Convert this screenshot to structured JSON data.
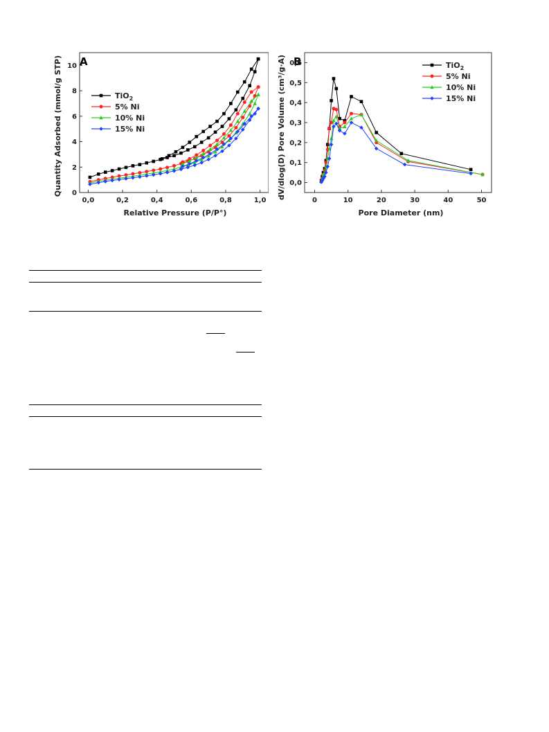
{
  "figure": {
    "panels": [
      {
        "letter": "A",
        "x_ticks": [
          "0,0",
          "0,2",
          "0,4",
          "0,6",
          "0,8",
          "1,0"
        ],
        "y_ticks": [
          "0",
          "2",
          "4",
          "6",
          "8",
          "10"
        ],
        "xlabel": "Relative Pressure (P/P°)",
        "ylabel": "Quantity Adsorbed (mmol/g STP)",
        "legend": [
          "TiO",
          "5% Ni",
          "10% Ni",
          "15% Ni"
        ]
      },
      {
        "letter": "B",
        "x_ticks": [
          "0",
          "10",
          "20",
          "30",
          "40",
          "50"
        ],
        "y_ticks": [
          "0,0",
          "0,1",
          "0,2",
          "0,3",
          "0,4",
          "0,5",
          "0,6"
        ],
        "xlabel": "Pore Diameter (nm)",
        "ylabel": "dV/dlog(D) Pore Volume (cm³/g·Å)",
        "legend": [
          "TiO",
          "5% Ni",
          "10% Ni",
          "15% Ni"
        ]
      }
    ],
    "legend_subscript": "2"
  },
  "chart_data": [
    {
      "type": "line",
      "title": "",
      "xlabel": "Relative Pressure (P/P°)",
      "ylabel": "Quantity Adsorbed (mmol/g STP)",
      "xlim": [
        -0.05,
        1.05
      ],
      "ylim": [
        0,
        11
      ],
      "grid": false,
      "legend_position": "left-middle",
      "series": [
        {
          "name": "TiO2",
          "color": "#000000",
          "adsorption": {
            "x": [
              0.01,
              0.06,
              0.1,
              0.14,
              0.18,
              0.22,
              0.26,
              0.3,
              0.34,
              0.38,
              0.42,
              0.46,
              0.5,
              0.54,
              0.58,
              0.62,
              0.66,
              0.7,
              0.74,
              0.78,
              0.82,
              0.86,
              0.9,
              0.94,
              0.97,
              0.99
            ],
            "y": [
              1.2,
              1.45,
              1.6,
              1.72,
              1.85,
              1.97,
              2.1,
              2.2,
              2.33,
              2.45,
              2.6,
              2.75,
              2.9,
              3.1,
              3.35,
              3.6,
              3.95,
              4.3,
              4.75,
              5.2,
              5.8,
              6.5,
              7.4,
              8.4,
              9.5,
              10.5
            ]
          },
          "desorption": {
            "x": [
              0.99,
              0.95,
              0.91,
              0.87,
              0.83,
              0.79,
              0.75,
              0.71,
              0.67,
              0.63,
              0.59,
              0.55,
              0.51,
              0.47,
              0.43
            ],
            "y": [
              10.5,
              9.7,
              8.7,
              7.9,
              7.0,
              6.2,
              5.6,
              5.2,
              4.8,
              4.4,
              3.95,
              3.55,
              3.2,
              2.9,
              2.65
            ]
          }
        },
        {
          "name": "5% Ni",
          "color": "#ff2020",
          "adsorption": {
            "x": [
              0.01,
              0.06,
              0.1,
              0.14,
              0.18,
              0.22,
              0.26,
              0.3,
              0.34,
              0.38,
              0.42,
              0.46,
              0.5,
              0.54,
              0.58,
              0.62,
              0.66,
              0.7,
              0.74,
              0.78,
              0.82,
              0.86,
              0.9,
              0.94,
              0.97,
              0.99
            ],
            "y": [
              0.85,
              1.0,
              1.1,
              1.2,
              1.3,
              1.38,
              1.47,
              1.55,
              1.65,
              1.75,
              1.85,
              1.97,
              2.1,
              2.27,
              2.45,
              2.67,
              2.9,
              3.2,
              3.55,
              3.95,
              4.45,
              5.1,
              5.9,
              6.8,
              7.6,
              8.3
            ]
          },
          "desorption": {
            "x": [
              0.99,
              0.95,
              0.91,
              0.87,
              0.83,
              0.79,
              0.75,
              0.71,
              0.67,
              0.63,
              0.59,
              0.55
            ],
            "y": [
              8.3,
              7.9,
              7.1,
              6.2,
              5.3,
              4.6,
              4.1,
              3.7,
              3.3,
              2.95,
              2.65,
              2.4
            ]
          }
        },
        {
          "name": "10% Ni",
          "color": "#22cc22",
          "adsorption": {
            "x": [
              0.01,
              0.06,
              0.1,
              0.14,
              0.18,
              0.22,
              0.26,
              0.3,
              0.34,
              0.38,
              0.42,
              0.46,
              0.5,
              0.54,
              0.58,
              0.62,
              0.66,
              0.7,
              0.74,
              0.78,
              0.82,
              0.86,
              0.9,
              0.94,
              0.97,
              0.99
            ],
            "y": [
              0.75,
              0.88,
              0.97,
              1.05,
              1.13,
              1.2,
              1.28,
              1.36,
              1.45,
              1.54,
              1.63,
              1.73,
              1.85,
              2.0,
              2.17,
              2.37,
              2.6,
              2.88,
              3.2,
              3.6,
              4.1,
              4.7,
              5.4,
              6.2,
              7.0,
              7.7
            ]
          },
          "desorption": {
            "x": [
              0.99,
              0.95,
              0.91,
              0.87,
              0.83,
              0.79,
              0.75,
              0.71,
              0.67,
              0.63,
              0.59,
              0.55
            ],
            "y": [
              7.7,
              7.2,
              6.4,
              5.6,
              4.9,
              4.3,
              3.8,
              3.4,
              3.05,
              2.75,
              2.5,
              2.25
            ]
          }
        },
        {
          "name": "15% Ni",
          "color": "#2040ff",
          "adsorption": {
            "x": [
              0.01,
              0.06,
              0.1,
              0.14,
              0.18,
              0.22,
              0.26,
              0.3,
              0.34,
              0.38,
              0.42,
              0.46,
              0.5,
              0.54,
              0.58,
              0.62,
              0.66,
              0.7,
              0.74,
              0.78,
              0.82,
              0.86,
              0.9,
              0.94,
              0.97,
              0.99
            ],
            "y": [
              0.65,
              0.78,
              0.87,
              0.95,
              1.02,
              1.09,
              1.16,
              1.23,
              1.31,
              1.39,
              1.48,
              1.58,
              1.7,
              1.83,
              1.98,
              2.15,
              2.35,
              2.6,
              2.9,
              3.25,
              3.7,
              4.25,
              4.95,
              5.7,
              6.2,
              6.6
            ]
          },
          "desorption": {
            "x": [
              0.99,
              0.95,
              0.91,
              0.87,
              0.83,
              0.79,
              0.75,
              0.71,
              0.67,
              0.63,
              0.59,
              0.55
            ],
            "y": [
              6.6,
              6.0,
              5.4,
              4.8,
              4.25,
              3.8,
              3.4,
              3.05,
              2.75,
              2.5,
              2.25,
              2.05
            ]
          }
        }
      ]
    },
    {
      "type": "line",
      "title": "",
      "xlabel": "Pore Diameter (nm)",
      "ylabel": "dV/dlog(D) Pore Volume (cm³/g·Å)",
      "xlim": [
        -3,
        53
      ],
      "ylim": [
        -0.05,
        0.65
      ],
      "grid": false,
      "legend_position": "top-right",
      "series": [
        {
          "name": "TiO2",
          "color": "#000000",
          "x": [
            2.0,
            2.3,
            2.6,
            3.0,
            3.4,
            3.9,
            4.4,
            5.0,
            5.7,
            6.5,
            7.5,
            9.0,
            11.0,
            14.0,
            18.5,
            26.0,
            46.8
          ],
          "y": [
            0.01,
            0.03,
            0.05,
            0.07,
            0.11,
            0.19,
            0.27,
            0.41,
            0.52,
            0.47,
            0.32,
            0.31,
            0.43,
            0.405,
            0.25,
            0.145,
            0.065
          ]
        },
        {
          "name": "5% Ni",
          "color": "#ff2020",
          "x": [
            2.0,
            2.3,
            2.6,
            3.0,
            3.4,
            3.9,
            4.4,
            5.0,
            5.7,
            6.5,
            7.5,
            9.0,
            11.0,
            14.0,
            18.5,
            28.0,
            50.3
          ],
          "y": [
            0.005,
            0.02,
            0.04,
            0.06,
            0.1,
            0.165,
            0.27,
            0.3,
            0.37,
            0.365,
            0.28,
            0.3,
            0.345,
            0.34,
            0.2,
            0.105,
            0.04
          ]
        },
        {
          "name": "10% Ni",
          "color": "#22cc22",
          "x": [
            2.0,
            2.3,
            2.6,
            3.0,
            3.4,
            3.9,
            4.4,
            5.0,
            5.7,
            6.5,
            7.5,
            9.0,
            11.0,
            14.0,
            18.5,
            28.0,
            50.3
          ],
          "y": [
            0.005,
            0.02,
            0.04,
            0.05,
            0.08,
            0.12,
            0.17,
            0.22,
            0.31,
            0.33,
            0.27,
            0.28,
            0.32,
            0.34,
            0.21,
            0.11,
            0.04
          ]
        },
        {
          "name": "15% Ni",
          "color": "#2040ff",
          "x": [
            2.0,
            2.3,
            2.6,
            3.0,
            3.4,
            3.9,
            4.4,
            5.0,
            5.7,
            6.5,
            7.5,
            9.0,
            11.0,
            14.0,
            18.5,
            27.0,
            46.8
          ],
          "y": [
            0.002,
            0.01,
            0.02,
            0.03,
            0.05,
            0.08,
            0.12,
            0.19,
            0.28,
            0.295,
            0.26,
            0.245,
            0.3,
            0.275,
            0.17,
            0.09,
            0.045
          ]
        }
      ]
    }
  ]
}
